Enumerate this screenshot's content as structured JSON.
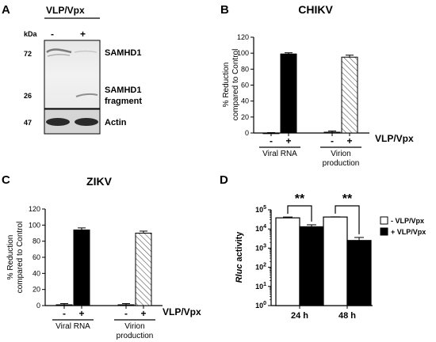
{
  "panels": {
    "A": {
      "letter": "A",
      "header": "VLP/Vpx",
      "unit": "kDa",
      "lanes": [
        "-",
        "+"
      ],
      "markers": [
        "72",
        "26",
        "47"
      ],
      "band_labels": [
        "SAMHD1",
        "SAMHD1",
        "fragment",
        "Actin"
      ]
    },
    "B": {
      "letter": "B"
    },
    "C": {
      "letter": "C"
    },
    "D": {
      "letter": "D"
    }
  },
  "treatment_label": "VLP/Vpx",
  "colors": {
    "untreated": "#ffffff",
    "treated": "#000000",
    "virion_hatch": "#555555"
  },
  "chart_data": [
    {
      "id": "B",
      "type": "bar",
      "title": "CHIKV",
      "ylabel_lines": [
        "% Reduction",
        "compared to Control"
      ],
      "ylim": [
        0,
        120
      ],
      "yticks": [
        0,
        20,
        40,
        60,
        80,
        100,
        120
      ],
      "groups": [
        {
          "label_lines": [
            "Viral RNA"
          ],
          "signs": [
            "-",
            "+"
          ],
          "values": [
            0,
            99
          ],
          "errors": [
            0.5,
            1.5
          ],
          "fills": [
            "untreated",
            "treated"
          ]
        },
        {
          "label_lines": [
            "Virion",
            "production"
          ],
          "signs": [
            "-",
            "+"
          ],
          "values": [
            1,
            95
          ],
          "errors": [
            1.5,
            2.5
          ],
          "fills": [
            "untreated",
            "hatch"
          ]
        }
      ]
    },
    {
      "id": "C",
      "type": "bar",
      "title": "ZIKV",
      "ylabel_lines": [
        "% Reduction",
        "compared to Control"
      ],
      "ylim": [
        0,
        120
      ],
      "yticks": [
        0,
        20,
        40,
        60,
        80,
        100,
        120
      ],
      "groups": [
        {
          "label_lines": [
            "Viral RNA"
          ],
          "signs": [
            "-",
            "+"
          ],
          "values": [
            1,
            94
          ],
          "errors": [
            1.5,
            2.5
          ],
          "fills": [
            "untreated",
            "treated"
          ]
        },
        {
          "label_lines": [
            "Virion",
            "production"
          ],
          "signs": [
            "-",
            "+"
          ],
          "values": [
            1,
            90
          ],
          "errors": [
            1.5,
            2.5
          ],
          "fills": [
            "untreated",
            "hatch"
          ]
        }
      ]
    },
    {
      "id": "D",
      "type": "bar",
      "ylabel_italic": "Rluc",
      "ylabel_rest": " activity",
      "yscale": "log",
      "ylim": [
        1,
        100000
      ],
      "yticks": [
        {
          "base": "10",
          "exp": "0",
          "value": 1
        },
        {
          "base": "10",
          "exp": "1",
          "value": 10
        },
        {
          "base": "10",
          "exp": "2",
          "value": 100
        },
        {
          "base": "10",
          "exp": "3",
          "value": 1000
        },
        {
          "base": "10",
          "exp": "4",
          "value": 10000
        },
        {
          "base": "10",
          "exp": "5",
          "value": 100000
        }
      ],
      "categories": [
        "24 h",
        "48 h"
      ],
      "series": [
        {
          "name": "- VLP/Vpx",
          "fill": "untreated",
          "values": [
            38000,
            42000
          ],
          "err_top": [
            42000,
            43000
          ]
        },
        {
          "name": "+ VLP/Vpx",
          "fill": "treated",
          "values": [
            13000,
            2500
          ],
          "err_top": [
            16500,
            3600
          ]
        }
      ],
      "significance": [
        "**",
        "**"
      ]
    }
  ]
}
